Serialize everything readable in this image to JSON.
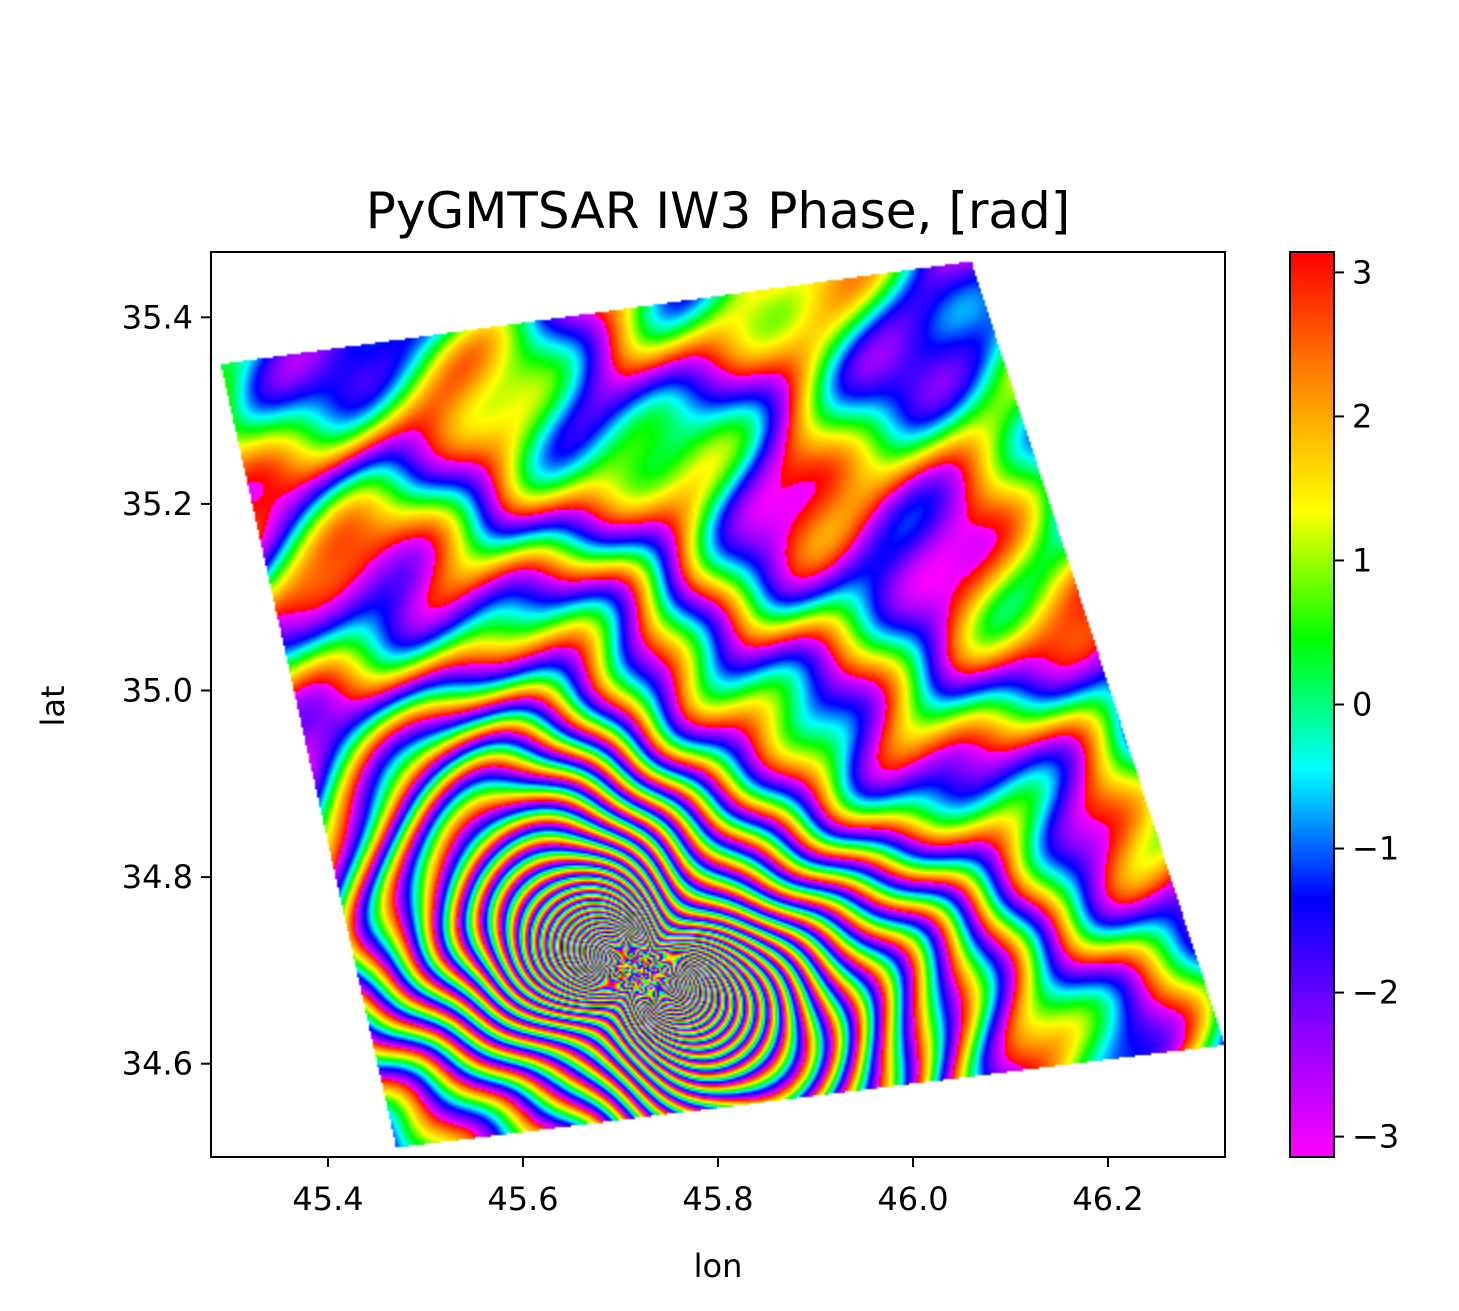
{
  "chart_data": {
    "type": "heatmap",
    "title": "PyGMTSAR IW3 Phase, [rad]",
    "xlabel": "lon",
    "ylabel": "lat",
    "xlim": [
      45.28,
      46.32
    ],
    "ylim": [
      34.5,
      35.47
    ],
    "xticks": [
      45.4,
      45.6,
      45.8,
      46.0,
      46.2
    ],
    "xtick_labels": [
      "45.4",
      "45.6",
      "45.8",
      "46.0",
      "46.2"
    ],
    "yticks": [
      34.6,
      34.8,
      35.0,
      35.2,
      35.4
    ],
    "ytick_labels": [
      "34.6",
      "34.8",
      "35.0",
      "35.2",
      "35.4"
    ],
    "grid": false,
    "colorbar": {
      "colormap": "gist_rainbow_r",
      "range": [
        -3.14159,
        3.14159
      ],
      "ticks": [
        -3,
        -2,
        -1,
        0,
        1,
        2,
        3
      ],
      "tick_labels": [
        "−3",
        "−2",
        "−1",
        "0",
        "1",
        "2",
        "3"
      ],
      "colors": [
        "#ff00ff",
        "#8800ff",
        "#0000ff",
        "#00ffff",
        "#00ff00",
        "#ffff00",
        "#ff8800",
        "#ff0000"
      ]
    },
    "swath_footprint": {
      "corners_lonlat": [
        [
          45.29,
          35.35
        ],
        [
          46.06,
          35.46
        ],
        [
          46.32,
          34.62
        ],
        [
          45.47,
          34.51
        ]
      ]
    },
    "deformation_center": [
      45.72,
      34.7
    ]
  }
}
